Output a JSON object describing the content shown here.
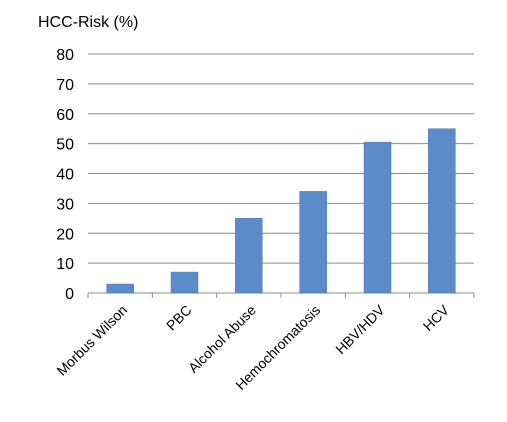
{
  "chart_data": {
    "type": "bar",
    "title": "HCC-Risk (%)",
    "xlabel": "",
    "ylabel": "",
    "categories": [
      "Morbus Wilson",
      "PBC",
      "Alcohol Abuse",
      "Hemochromatosis",
      "HBV/HDV",
      "HCV"
    ],
    "values": [
      3,
      7,
      25,
      34,
      50.5,
      55
    ],
    "ylim": [
      0,
      80
    ],
    "yticks": [
      "0",
      "10",
      "20",
      "30",
      "40",
      "50",
      "60",
      "70",
      "80"
    ],
    "grid": true,
    "legend": "none",
    "colors": {
      "bar": "#5B8BC9",
      "bar_edge": "#4A78B3",
      "grid": "#8C8C8C",
      "axis": "#8C8C8C"
    }
  }
}
